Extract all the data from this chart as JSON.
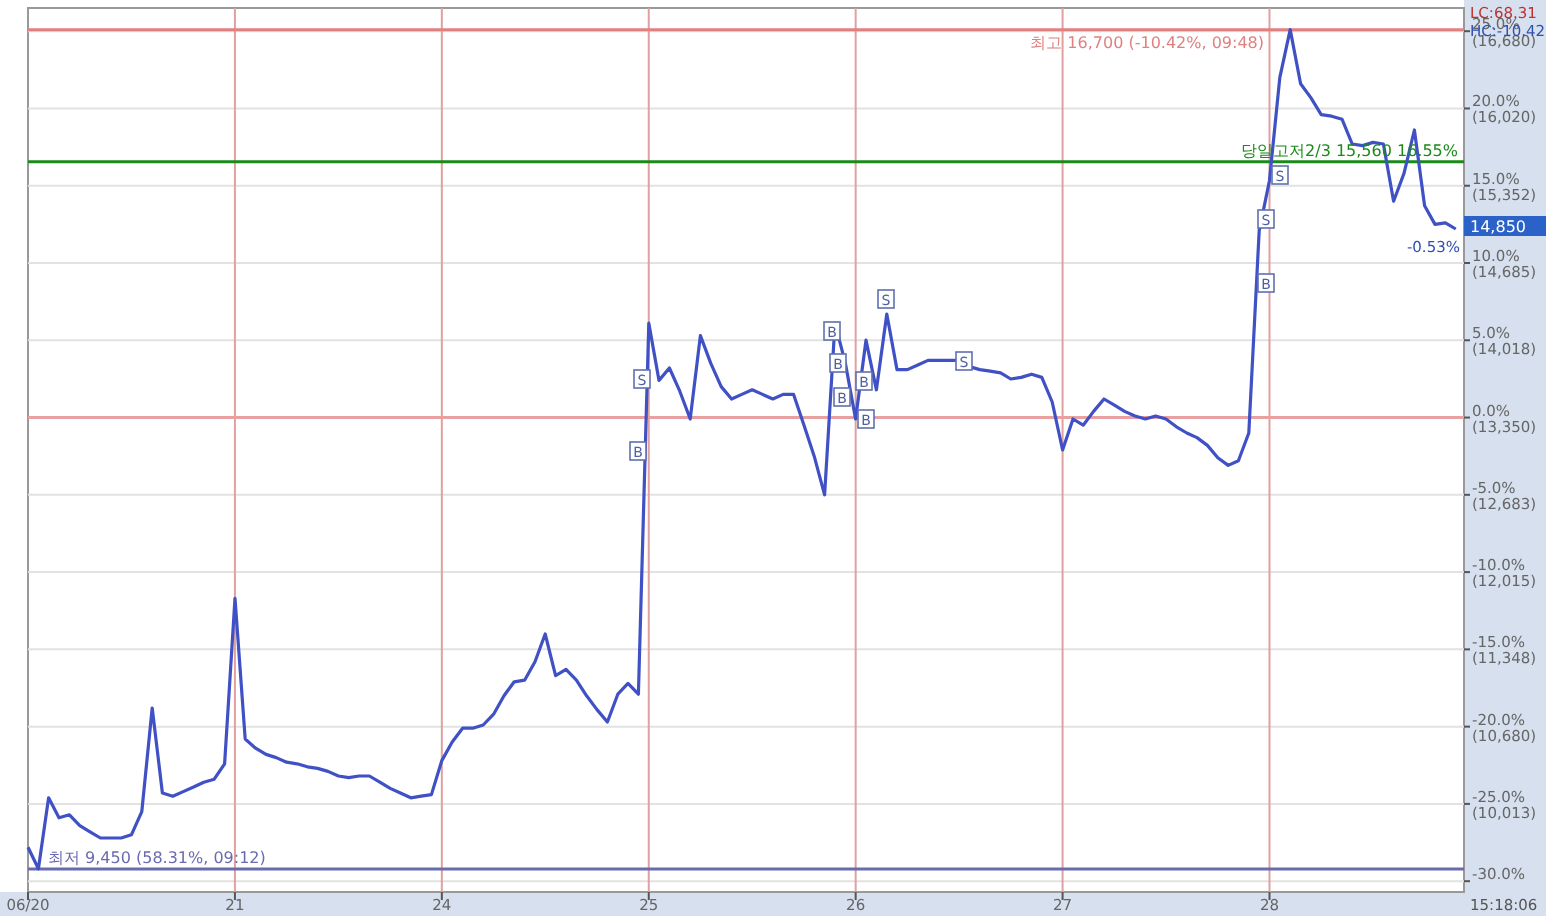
{
  "chart_data": {
    "type": "line",
    "categories": [
      "06/20",
      null,
      null,
      null,
      null,
      null,
      null,
      null,
      null,
      null,
      null,
      null,
      null,
      null,
      null,
      null,
      null,
      null,
      null,
      null,
      "21",
      null,
      null,
      null,
      null,
      null,
      null,
      null,
      null,
      null,
      null,
      null,
      null,
      null,
      null,
      null,
      null,
      null,
      null,
      null,
      "24",
      null,
      null,
      null,
      null,
      null,
      null,
      null,
      null,
      null,
      null,
      null,
      null,
      null,
      null,
      null,
      null,
      null,
      null,
      null,
      "25",
      null,
      null,
      null,
      null,
      null,
      null,
      null,
      null,
      null,
      null,
      null,
      null,
      null,
      null,
      null,
      null,
      null,
      null,
      null,
      "26",
      null,
      null,
      null,
      null,
      null,
      null,
      null,
      null,
      null,
      null,
      null,
      null,
      null,
      null,
      null,
      null,
      null,
      null,
      null,
      "27",
      null,
      null,
      null,
      null,
      null,
      null,
      null,
      null,
      null,
      null,
      null,
      null,
      null,
      null,
      null,
      null,
      null,
      null,
      null,
      "28",
      null,
      null,
      null,
      null,
      null,
      null,
      null,
      null,
      null,
      null,
      null,
      null,
      null,
      null,
      null,
      null,
      null,
      null
    ],
    "series": [
      {
        "color": "#3f51c4",
        "values": [
          -27.8,
          -29.2,
          -24.6,
          -25.9,
          -25.7,
          -26.4,
          -26.8,
          -27.2,
          -27.2,
          -27.2,
          -27.0,
          -25.5,
          -18.8,
          -24.3,
          -24.5,
          -24.2,
          -23.9,
          -23.6,
          -23.4,
          -22.4,
          -11.7,
          -20.8,
          -21.4,
          -21.8,
          -22.0,
          -22.3,
          -22.4,
          -22.6,
          -22.7,
          -22.9,
          -23.2,
          -23.3,
          -23.2,
          -23.2,
          -23.6,
          -24.0,
          -24.3,
          -24.6,
          -24.5,
          -24.4,
          -22.2,
          -21.0,
          -20.1,
          -20.1,
          -19.9,
          -19.2,
          -18.0,
          -17.1,
          -17.0,
          -15.8,
          -14.0,
          -16.7,
          -16.3,
          -17.0,
          -18.0,
          -18.9,
          -19.7,
          -17.9,
          -17.2,
          -17.9,
          6.1,
          2.4,
          3.2,
          1.7,
          -0.1,
          5.3,
          3.5,
          2.0,
          1.2,
          1.5,
          1.8,
          1.5,
          1.2,
          1.5,
          1.5,
          -0.5,
          -2.5,
          -5.0,
          6.1,
          3.5,
          -0.1,
          5.0,
          1.8,
          6.7,
          3.1,
          3.1,
          3.4,
          3.7,
          3.7,
          3.7,
          3.7,
          3.3,
          3.1,
          3.0,
          2.9,
          2.5,
          2.6,
          2.8,
          2.6,
          1.0,
          -2.1,
          -0.1,
          -0.5,
          0.4,
          1.2,
          0.8,
          0.4,
          0.1,
          -0.1,
          0.1,
          -0.1,
          -0.6,
          -1.0,
          -1.3,
          -1.8,
          -2.6,
          -3.1,
          -2.8,
          -1.0,
          12.1,
          15.3,
          22.0,
          25.1,
          21.6,
          20.7,
          19.6,
          19.5,
          19.3,
          17.7,
          17.6,
          17.8,
          17.7,
          14.0,
          15.8,
          18.6,
          13.7,
          12.5,
          12.6,
          12.2
        ]
      }
    ],
    "y2lim": [
      9252,
      16888
    ],
    "y2ticks": [
      {
        "value": 16680,
        "label": "(16,680)"
      },
      {
        "value": 16020,
        "label": "(16,020)"
      },
      {
        "value": 15352,
        "label": "(15,352)"
      },
      {
        "value": 14685,
        "label": "(14,685)"
      },
      {
        "value": 14018,
        "label": "(14,018)"
      },
      {
        "value": 13350,
        "label": "(13,350)"
      },
      {
        "value": 12683,
        "label": "(12,683)"
      },
      {
        "value": 12015,
        "label": "(12,015)"
      },
      {
        "value": 11348,
        "label": "(11,348)"
      },
      {
        "value": 10680,
        "label": "(10,680)"
      },
      {
        "value": 10013,
        "label": "(10,013)"
      }
    ],
    "ylim": [
      -30.7,
      26.5
    ],
    "yticks": [
      {
        "value": 25,
        "label": "25.0%"
      },
      {
        "value": 20,
        "label": "20.0%"
      },
      {
        "value": 15,
        "label": "15.0%"
      },
      {
        "value": 10,
        "label": "10.0%"
      },
      {
        "value": 5,
        "label": "5.0%"
      },
      {
        "value": 0,
        "label": "0.0%"
      },
      {
        "value": -5,
        "label": "-5.0%"
      },
      {
        "value": -10,
        "label": "-10.0%"
      },
      {
        "value": -15,
        "label": "-15.0%"
      },
      {
        "value": -20,
        "label": "-20.0%"
      },
      {
        "value": -25,
        "label": "-25.0%"
      },
      {
        "value": -30,
        "label": "-30.0%"
      }
    ],
    "grid": true,
    "ref_lines": [
      {
        "axis": "y2",
        "value": 16700,
        "label": "최고 16,700 (-10.42%, 09:48)",
        "color": "#e08080"
      },
      {
        "axis": "y2",
        "value": 15560,
        "label": "당일고저2/3 15,560 16.55%",
        "color": "#1a8a1a"
      },
      {
        "axis": "y",
        "value": 0,
        "label": null,
        "color": "#e8a0a0"
      },
      {
        "axis": "y2",
        "value": 9450,
        "label": "최저 9,450 (58.31%, 09:12)",
        "color": "#6a6ab0"
      }
    ],
    "annotations": [
      "LC:68.31",
      "HC:-10.42",
      "15:18:06",
      "14,850",
      "-0.53%",
      "S",
      "B",
      "B",
      "B",
      "B",
      "S",
      "B",
      "B",
      "S",
      "B",
      "S",
      "S"
    ]
  }
}
